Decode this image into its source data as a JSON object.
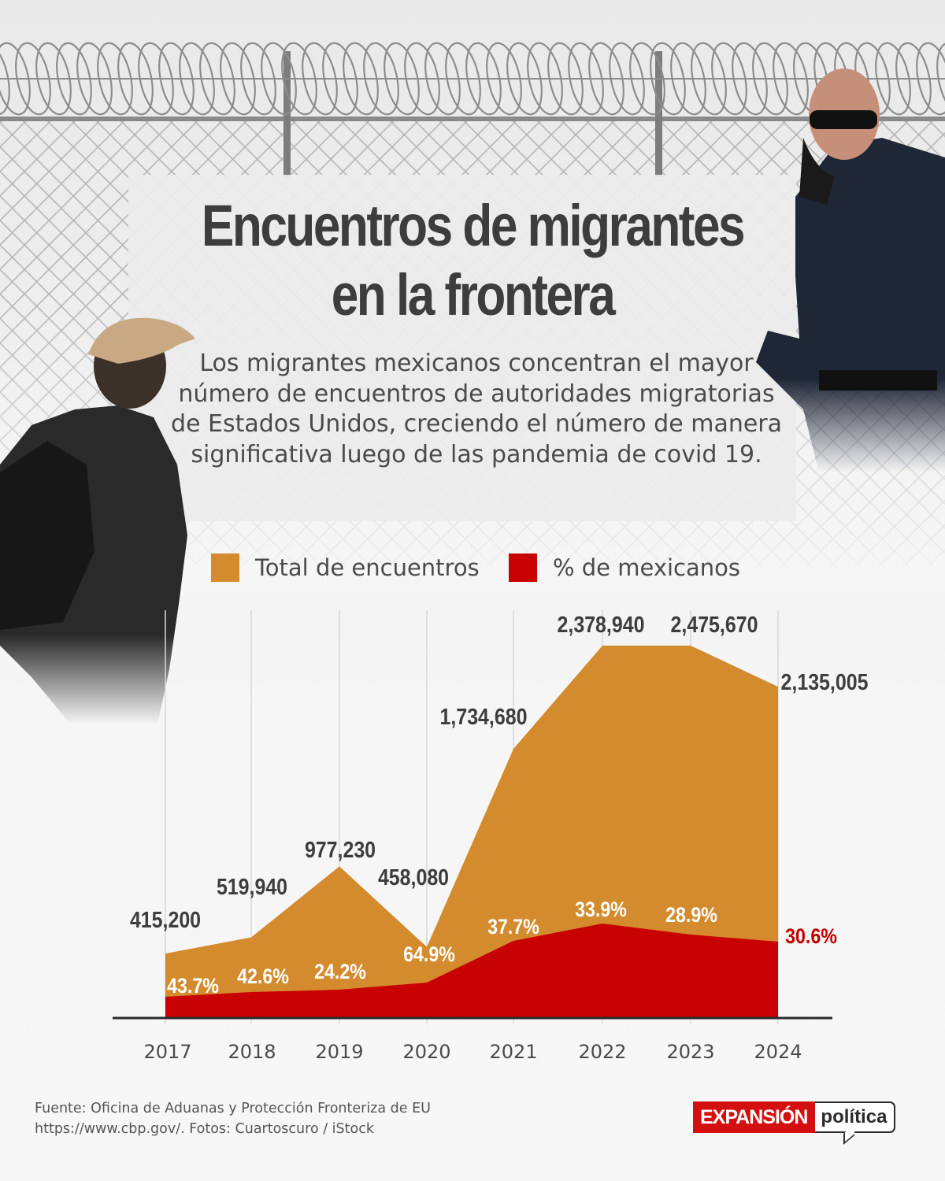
{
  "title_line1": "Encuentros de migrantes",
  "title_line2": "en la frontera",
  "subtitle": "Los migrantes mexicanos concentran el mayor número de encuentros de autoridades migratorias de Estados Unidos, creciendo el número de manera significativa luego de las pandemia de covid 19.",
  "legend": {
    "total_label": "Total de encuentros",
    "mex_label": "% de mexicanos"
  },
  "colors": {
    "total": "#d38b2d",
    "mexicans": "#c80202",
    "text_dark": "#3d3d3d",
    "label_red": "#c40000"
  },
  "chart_data": {
    "type": "area",
    "title": "Encuentros de migrantes en la frontera",
    "categories": [
      "2017",
      "2018",
      "2019",
      "2020",
      "2021",
      "2022",
      "2023",
      "2024"
    ],
    "series": [
      {
        "name": "Total de encuentros",
        "values": [
          415200,
          519940,
          977230,
          458080,
          1734680,
          2378940,
          2475670,
          2135005
        ],
        "labels": [
          "415,200",
          "519,940",
          "977,230",
          "458,080",
          "1,734,680",
          "2,378,940",
          "2,475,670",
          "2,135,005"
        ]
      },
      {
        "name": "% de mexicanos",
        "values": [
          43.7,
          42.6,
          24.2,
          64.9,
          37.7,
          33.9,
          28.9,
          30.6
        ],
        "labels": [
          "43.7%",
          "42.6%",
          "24.2%",
          "64.9%",
          "37.7%",
          "33.9%",
          "28.9%",
          "30.6%"
        ]
      }
    ],
    "legend_position": "top",
    "grid": "vertical"
  },
  "source_line1": "Fuente: Oficina de Aduanas y Protección Fronteriza de EU",
  "source_line2": "https://www.cbp.gov/. Fotos: Cuartoscuro / iStock",
  "logo": {
    "expansion": "EXPANSIÓN",
    "politica": "política"
  }
}
